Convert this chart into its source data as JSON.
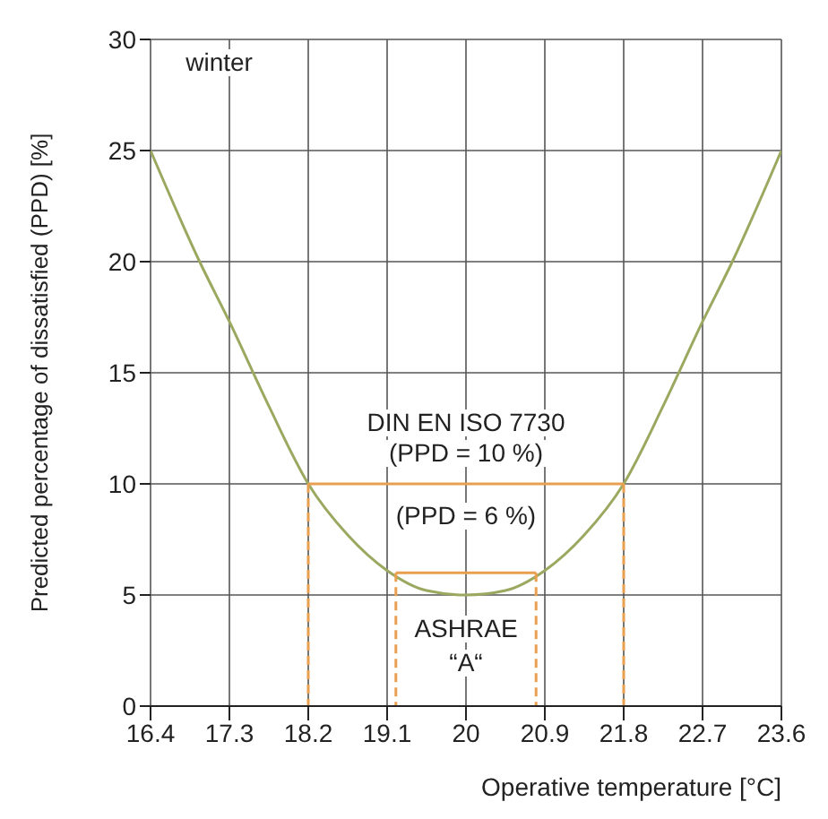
{
  "chart_data": {
    "type": "line",
    "xlabel": "Operative temperature [°C]",
    "ylabel": "Predicted percentage of dissatisfied (PPD) [%]",
    "xlim": [
      16.4,
      23.6
    ],
    "xticks": [
      16.4,
      17.3,
      18.2,
      19.1,
      20,
      20.9,
      21.8,
      22.7,
      23.6
    ],
    "ylim": [
      0,
      30
    ],
    "yticks": [
      0,
      5,
      10,
      15,
      20,
      25,
      30
    ],
    "grid": true,
    "marker": "none",
    "series": [
      {
        "color": "#9aa860",
        "x": [
          16.4,
          16.96,
          17.3,
          17.75,
          18.2,
          18.65,
          19.1,
          19.55,
          20,
          20.45,
          20.9,
          21.35,
          21.8,
          22.25,
          22.7,
          23.04,
          23.6
        ],
        "values": [
          25,
          20,
          17.3,
          13.5,
          10,
          7.7,
          6.1,
          5.2,
          5,
          5.2,
          6.1,
          7.7,
          10,
          13.5,
          17.3,
          20,
          25
        ]
      },
      {
        "color": "#e8a050",
        "x": [
          18.2,
          21.8
        ],
        "values": [
          10,
          10
        ]
      },
      {
        "color": "#e8a050",
        "x": [
          19.2,
          20.8
        ],
        "values": [
          6,
          6
        ]
      },
      {
        "color": "#e8a050",
        "line_style": "dashed",
        "x": [
          18.2,
          18.2
        ],
        "values": [
          10,
          0
        ]
      },
      {
        "color": "#e8a050",
        "line_style": "dashed",
        "x": [
          21.8,
          21.8
        ],
        "values": [
          10,
          0
        ]
      },
      {
        "color": "#e8a050",
        "line_style": "dashed",
        "x": [
          19.2,
          19.2
        ],
        "values": [
          6,
          0
        ]
      },
      {
        "color": "#e8a050",
        "line_style": "dashed",
        "x": [
          20.8,
          20.8
        ],
        "values": [
          6,
          0
        ]
      }
    ],
    "annotations": [
      "winter",
      "DIN EN ISO 7730",
      "(PPD = 10 %)",
      "(PPD = 6 %)",
      "ASHRAE",
      "“A“"
    ]
  }
}
